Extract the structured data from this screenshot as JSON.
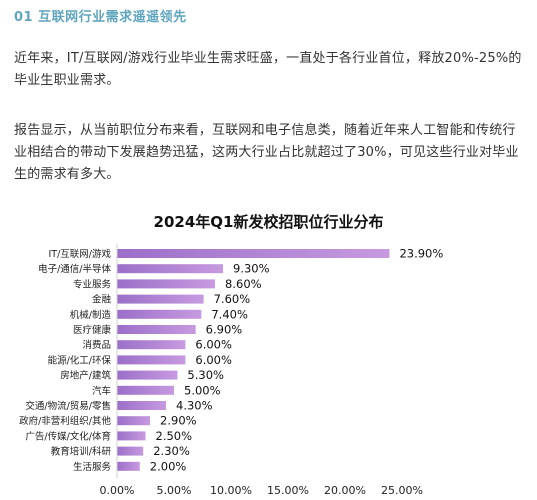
{
  "section_title": "01 互联网行业需求遥遥领先",
  "paragraphs": [
    "近年来，IT/互联网/游戏行业毕业生需求旺盛，一直处于各行业首位，释放20%-25%的毕业生职业需求。",
    "报告显示，从当前职位分布来看，互联网和电子信息类，随着近年来人工智能和传统行业相结合的带动下发展趋势迅猛，这两大行业占比就超过了30%，可见这些行业对毕业生的需求有多大。"
  ],
  "colors": {
    "bar_start": "#9B6FC8",
    "bar_end": "#C79AE0",
    "title": "#5FA5BD"
  },
  "chart_data": {
    "type": "bar",
    "orientation": "horizontal",
    "title": "2024年Q1新发校招职位行业分布",
    "categories": [
      "IT/互联网/游戏",
      "电子/通信/半导体",
      "专业服务",
      "金融",
      "机械/制造",
      "医疗健康",
      "消费品",
      "能源/化工/环保",
      "房地产/建筑",
      "汽车",
      "交通/物流/贸易/零售",
      "政府/非营利组织/其他",
      "广告/传媒/文化/体育",
      "教育培训/科研",
      "生活服务"
    ],
    "values": [
      23.9,
      9.3,
      8.6,
      7.6,
      7.4,
      6.9,
      6.0,
      6.0,
      5.3,
      5.0,
      4.3,
      2.9,
      2.5,
      2.3,
      2.0
    ],
    "data_labels": [
      "23.90%",
      "9.30%",
      "8.60%",
      "7.60%",
      "7.40%",
      "6.90%",
      "6.00%",
      "6.00%",
      "5.30%",
      "5.00%",
      "4.30%",
      "2.90%",
      "2.50%",
      "2.30%",
      "2.00%"
    ],
    "xlim": [
      0,
      25
    ],
    "xticks": [
      0,
      5,
      10,
      15,
      20,
      25
    ],
    "xtick_labels": [
      "0.00%",
      "5.00%",
      "10.00%",
      "15.00%",
      "20.00%",
      "25.00%"
    ],
    "grid": false,
    "legend": "none"
  }
}
